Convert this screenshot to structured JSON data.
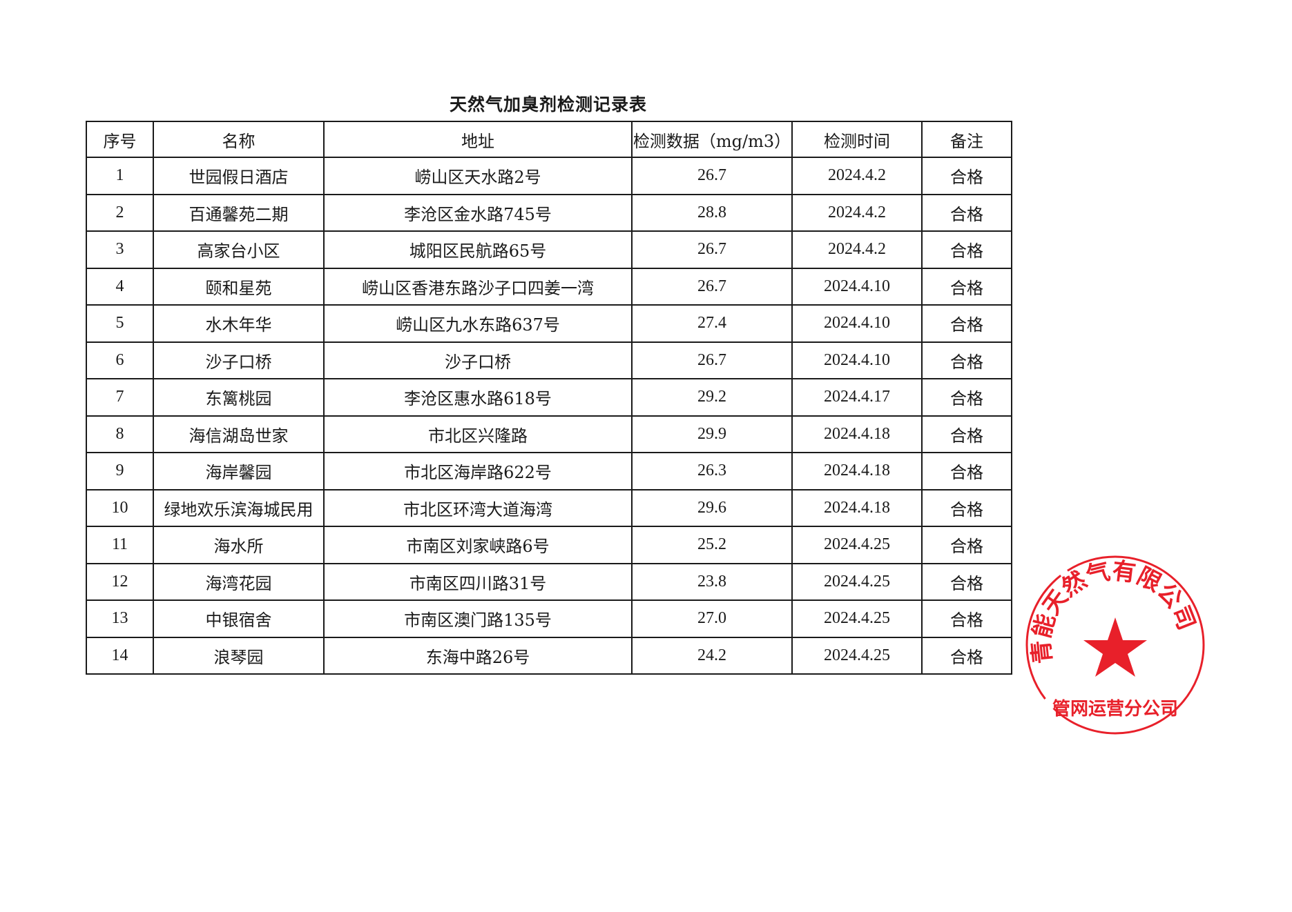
{
  "document": {
    "title": "天然气加臭剂检测记录表",
    "columns": [
      "序号",
      "名称",
      "地址",
      "检测数据（mg/m3）",
      "检测时间",
      "备注"
    ],
    "rows": [
      [
        "1",
        "世园假日酒店",
        "崂山区天水路2号",
        "26.7",
        "2024.4.2",
        "合格"
      ],
      [
        "2",
        "百通馨苑二期",
        "李沧区金水路745号",
        "28.8",
        "2024.4.2",
        "合格"
      ],
      [
        "3",
        "高家台小区",
        "城阳区民航路65号",
        "26.7",
        "2024.4.2",
        "合格"
      ],
      [
        "4",
        "颐和星苑",
        "崂山区香港东路沙子口四姜一湾",
        "26.7",
        "2024.4.10",
        "合格"
      ],
      [
        "5",
        "水木年华",
        "崂山区九水东路637号",
        "27.4",
        "2024.4.10",
        "合格"
      ],
      [
        "6",
        "沙子口桥",
        "沙子口桥",
        "26.7",
        "2024.4.10",
        "合格"
      ],
      [
        "7",
        "东篱桃园",
        "李沧区惠水路618号",
        "29.2",
        "2024.4.17",
        "合格"
      ],
      [
        "8",
        "海信湖岛世家",
        "市北区兴隆路",
        "29.9",
        "2024.4.18",
        "合格"
      ],
      [
        "9",
        "海岸馨园",
        "市北区海岸路622号",
        "26.3",
        "2024.4.18",
        "合格"
      ],
      [
        "10",
        "绿地欢乐滨海城民用",
        "市北区环湾大道海湾",
        "29.6",
        "2024.4.18",
        "合格"
      ],
      [
        "11",
        "海水所",
        "市南区刘家峡路6号",
        "25.2",
        "2024.4.25",
        "合格"
      ],
      [
        "12",
        "海湾花园",
        "市南区四川路31号",
        "23.8",
        "2024.4.25",
        "合格"
      ],
      [
        "13",
        "中银宿舍",
        "市南区澳门路135号",
        "27.0",
        "2024.4.25",
        "合格"
      ],
      [
        "14",
        "浪琴园",
        "东海中路26号",
        "24.2",
        "2024.4.25",
        "合格"
      ]
    ]
  },
  "stamp": {
    "arc_text": "青能天然气有限公司",
    "bottom_text": "管网运营分公司",
    "color": "#e8202a"
  }
}
